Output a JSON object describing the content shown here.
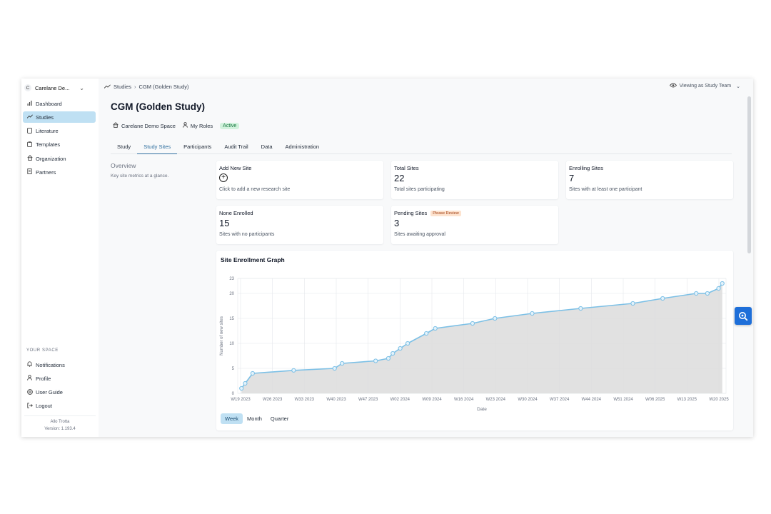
{
  "sidebar": {
    "workspace": {
      "initial": "C",
      "name": "Carelane De..."
    },
    "nav": [
      {
        "label": "Dashboard",
        "icon": "chart-bar-icon"
      },
      {
        "label": "Studies",
        "icon": "trend-icon"
      },
      {
        "label": "Literature",
        "icon": "book-icon"
      },
      {
        "label": "Templates",
        "icon": "clipboard-icon"
      },
      {
        "label": "Organization",
        "icon": "home-icon"
      },
      {
        "label": "Partners",
        "icon": "building-icon"
      }
    ],
    "your_space_label": "YOUR SPACE",
    "space_nav": [
      {
        "label": "Notifications",
        "icon": "bell-icon"
      },
      {
        "label": "Profile",
        "icon": "user-icon"
      },
      {
        "label": "User Guide",
        "icon": "help-icon"
      },
      {
        "label": "Logout",
        "icon": "logout-icon"
      }
    ],
    "user_name": "Allo Trotta",
    "version": "Version: 1.193.4"
  },
  "header": {
    "breadcrumb": [
      "Studies",
      "CGM (Golden Study)"
    ],
    "viewing_as": "Viewing as Study Team"
  },
  "study": {
    "title": "CGM (Golden Study)",
    "space": "Carelane Demo Space",
    "roles": "My Roles",
    "status": "Active",
    "status_color": "#d1f2dc"
  },
  "tabs": [
    "Study",
    "Study Sites",
    "Participants",
    "Audit Trail",
    "Data",
    "Administration"
  ],
  "overview": {
    "title": "Overview",
    "subtitle": "Key site metrics at a glance."
  },
  "cards": {
    "add_site": {
      "title": "Add New Site",
      "sub": "Click to add a new research site"
    },
    "total": {
      "title": "Total Sites",
      "value": "22",
      "sub": "Total sites participating"
    },
    "enrolling": {
      "title": "Enrolling Sites",
      "value": "7",
      "sub": "Sites with at least one participant"
    },
    "none_enrolled": {
      "title": "None Enrolled",
      "value": "15",
      "sub": "Sites with no participants"
    },
    "pending": {
      "title": "Pending Sites",
      "badge": "Please Review",
      "value": "3",
      "sub": "Sites awaiting approval"
    }
  },
  "graph": {
    "title": "Site Enrollment Graph",
    "granularity": [
      "Week",
      "Month",
      "Quarter"
    ],
    "accent": "#7cc0e6"
  },
  "chart_data": {
    "type": "area",
    "xlabel": "Date",
    "ylabel": "Number of new sites",
    "ylim": [
      0,
      23
    ],
    "yticks": [
      0,
      5,
      10,
      15,
      20,
      23
    ],
    "xticks": [
      "W19 2023",
      "W26 2023",
      "W33 2023",
      "W40 2023",
      "W47 2023",
      "W02 2024",
      "W09 2024",
      "W16 2024",
      "W23 2024",
      "W30 2024",
      "W37 2024",
      "W44 2024",
      "W51 2024",
      "W06 2025",
      "W13 2025",
      "W20 2025"
    ],
    "grid": true,
    "points": [
      {
        "x": 19.0,
        "y": 1
      },
      {
        "x": 19.5,
        "y": 2
      },
      {
        "x": 20.5,
        "y": 4
      },
      {
        "x": 26.0,
        "y": 4.6
      },
      {
        "x": 31.5,
        "y": 5
      },
      {
        "x": 32.5,
        "y": 6
      },
      {
        "x": 37.0,
        "y": 6.5
      },
      {
        "x": 38.7,
        "y": 7
      },
      {
        "x": 39.3,
        "y": 8
      },
      {
        "x": 40.3,
        "y": 9
      },
      {
        "x": 41.3,
        "y": 10
      },
      {
        "x": 43.8,
        "y": 12
      },
      {
        "x": 45.0,
        "y": 13
      },
      {
        "x": 50.0,
        "y": 14
      },
      {
        "x": 53.0,
        "y": 15
      },
      {
        "x": 58.0,
        "y": 16
      },
      {
        "x": 64.5,
        "y": 17
      },
      {
        "x": 71.5,
        "y": 18
      },
      {
        "x": 75.5,
        "y": 19
      },
      {
        "x": 80.0,
        "y": 20
      },
      {
        "x": 81.5,
        "y": 20
      },
      {
        "x": 83.0,
        "y": 21
      },
      {
        "x": 83.5,
        "y": 22
      }
    ]
  }
}
